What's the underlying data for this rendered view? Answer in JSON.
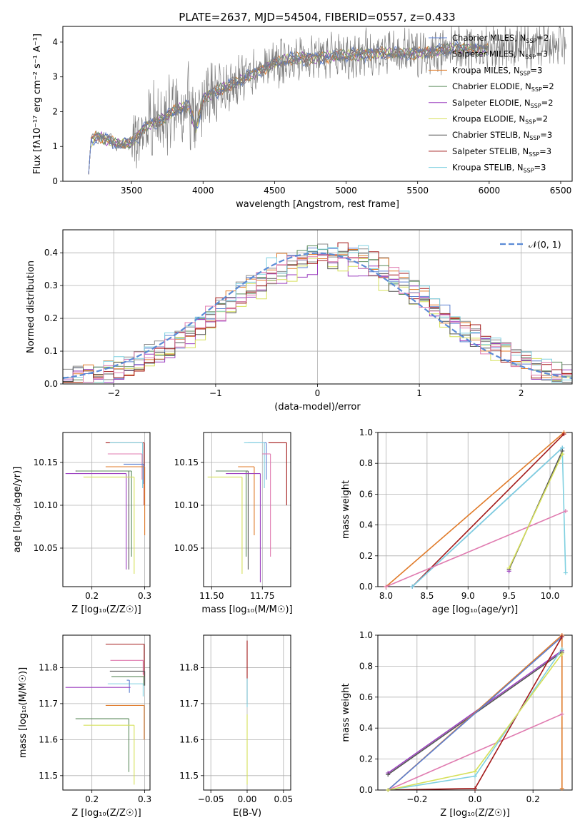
{
  "title": "PLATE=2637, MJD=54504, FIBERID=0557, z=0.433",
  "colors": {
    "chabrier_miles": "#5b7fd1",
    "salpeter_miles": "#8a8a8a",
    "kroupa_miles": "#e07b2a",
    "chabrier_elodie": "#5a8a5a",
    "salpeter_elodie": "#9b3fbf",
    "kroupa_elodie": "#d6e05a",
    "chabrier_stelib": "#555555",
    "salpeter_stelib": "#a31a1a",
    "kroupa_stelib": "#7fd0e0",
    "pink": "#e07bb0",
    "data": "#7f7f7f",
    "gauss": "#5b8bd6",
    "grid": "#b0b0b0"
  },
  "chart_data": [
    {
      "id": "spectrum",
      "type": "line",
      "xlabel": "wavelength [Angstrom, rest frame]",
      "ylabel": "Flux [fλ10⁻¹⁷ erg cm⁻² s⁻¹ A⁻¹]",
      "xlim": [
        3020,
        6580
      ],
      "ylim": [
        0,
        4.45
      ],
      "xticks": [
        3500,
        4000,
        4500,
        5000,
        5500,
        6000,
        6500
      ],
      "yticks": [
        0,
        1,
        2,
        3,
        4
      ],
      "legend_position": "top-right",
      "legend": [
        {
          "label": "Chabrier MILES, N",
          "sub": "SSP",
          "suffix": "=2",
          "color": "#5b7fd1"
        },
        {
          "label": "Salpeter MILES, N",
          "sub": "SSP",
          "suffix": "=3",
          "color": "#8a8a8a"
        },
        {
          "label": "Kroupa MILES, N",
          "sub": "SSP",
          "suffix": "=3",
          "color": "#e07b2a"
        },
        {
          "label": "Chabrier ELODIE, N",
          "sub": "SSP",
          "suffix": "=2",
          "color": "#5a8a5a"
        },
        {
          "label": "Salpeter ELODIE, N",
          "sub": "SSP",
          "suffix": "=2",
          "color": "#9b3fbf"
        },
        {
          "label": "Kroupa ELODIE, N",
          "sub": "SSP",
          "suffix": "=2",
          "color": "#d6e05a"
        },
        {
          "label": "Chabrier STELIB, N",
          "sub": "SSP",
          "suffix": "=3",
          "color": "#555555"
        },
        {
          "label": "Salpeter STELIB, N",
          "sub": "SSP",
          "suffix": "=3",
          "color": "#a31a1a"
        },
        {
          "label": "Kroupa STELIB, N",
          "sub": "SSP",
          "suffix": "=3",
          "color": "#7fd0e0"
        }
      ],
      "continuum": {
        "x": [
          3200,
          3250,
          3300,
          3400,
          3500,
          3600,
          3700,
          3800,
          3900,
          3950,
          4000,
          4100,
          4200,
          4300,
          4500,
          4700,
          5000,
          5200,
          5400,
          5600,
          5800,
          6000,
          6200,
          6400,
          6540
        ],
        "y": [
          1.1,
          1.3,
          1.25,
          1.05,
          1.1,
          1.6,
          1.75,
          2.0,
          2.2,
          1.5,
          2.4,
          2.6,
          2.75,
          3.0,
          3.4,
          3.55,
          3.6,
          3.7,
          3.65,
          3.75,
          3.8,
          3.8,
          3.85,
          3.85,
          3.9
        ]
      },
      "data_start": 3250,
      "models_start": 3200,
      "models_end": 6000,
      "grid": false
    },
    {
      "id": "residuals",
      "type": "histogram",
      "xlabel": "(data-model)/error",
      "ylabel": "Normed distribution",
      "xlim": [
        -2.5,
        2.5
      ],
      "ylim": [
        0,
        0.47
      ],
      "xticks": [
        -2,
        -1,
        0,
        1,
        2
      ],
      "yticks": [
        0,
        0.1,
        0.2,
        0.3,
        0.4
      ],
      "bin_width": 0.1,
      "gauss_label": "𝒩(0, 1)",
      "legend_position": "top-right",
      "grid": true
    },
    {
      "id": "age_vs_Z",
      "type": "errorbar",
      "xlabel": "Z [log₁₀(Z/Z☉)]",
      "ylabel": "age  [log₁₀(age/yr)]",
      "xlim": [
        0.145,
        0.31
      ],
      "ylim": [
        10.005,
        10.185
      ],
      "xticks": [
        0.2,
        0.3
      ],
      "yticks": [
        10.05,
        10.1,
        10.15
      ],
      "series": [
        {
          "color": "#a31a1a",
          "x": 0.299,
          "y": 10.173,
          "xlo": 0.226,
          "ylo": 10.1
        },
        {
          "color": "#7fd0e0",
          "x": 0.296,
          "y": 10.173,
          "xlo": 0.234,
          "ylo": 10.12
        },
        {
          "color": "#e07bb0",
          "x": 0.295,
          "y": 10.16,
          "xlo": 0.23,
          "ylo": 10.13
        },
        {
          "color": "#e07b2a",
          "x": 0.3,
          "y": 10.145,
          "xlo": 0.226,
          "ylo": 10.065
        },
        {
          "color": "#5b7fd1",
          "x": 0.298,
          "y": 10.148,
          "xlo": 0.26,
          "ylo": 10.125
        },
        {
          "color": "#555555",
          "x": 0.27,
          "y": 10.14,
          "xlo": 0.169,
          "ylo": 10.025
        },
        {
          "color": "#5a8a5a",
          "x": 0.275,
          "y": 10.14,
          "xlo": 0.172,
          "ylo": 10.04
        },
        {
          "color": "#9b3fbf",
          "x": 0.265,
          "y": 10.137,
          "xlo": 0.15,
          "ylo": 10.025
        },
        {
          "color": "#d6e05a",
          "x": 0.28,
          "y": 10.133,
          "xlo": 0.184,
          "ylo": 10.02
        }
      ],
      "grid": true
    },
    {
      "id": "age_vs_mass",
      "type": "errorbar",
      "xlabel": "mass [log₁₀(M/M☉)]",
      "ylabel": "",
      "xlim": [
        11.46,
        11.89
      ],
      "ylim": [
        10.005,
        10.185
      ],
      "xticks": [
        11.5,
        11.75
      ],
      "yticks": [
        10.05,
        10.1,
        10.15
      ],
      "series": [
        {
          "color": "#a31a1a",
          "x": 11.87,
          "y": 10.173,
          "xlo": 11.78,
          "ylo": 10.1
        },
        {
          "color": "#5b7fd1",
          "x": 11.77,
          "y": 10.173,
          "xlo": 11.68,
          "ylo": 10.13
        },
        {
          "color": "#7fd0e0",
          "x": 11.76,
          "y": 10.173,
          "xlo": 11.66,
          "ylo": 10.12
        },
        {
          "color": "#e07bb0",
          "x": 11.79,
          "y": 10.16,
          "xlo": 11.75,
          "ylo": 10.04
        },
        {
          "color": "#e07b2a",
          "x": 11.71,
          "y": 10.145,
          "xlo": 11.63,
          "ylo": 10.065
        },
        {
          "color": "#555555",
          "x": 11.68,
          "y": 10.14,
          "xlo": 11.56,
          "ylo": 10.025
        },
        {
          "color": "#5a8a5a",
          "x": 11.67,
          "y": 10.14,
          "xlo": 11.52,
          "ylo": 10.04
        },
        {
          "color": "#9b3fbf",
          "x": 11.74,
          "y": 10.137,
          "xlo": 11.57,
          "ylo": 10.01
        },
        {
          "color": "#d6e05a",
          "x": 11.65,
          "y": 10.133,
          "xlo": 11.48,
          "ylo": 10.02
        }
      ],
      "grid": true
    },
    {
      "id": "mass_weight_vs_age",
      "type": "line",
      "xlabel": "age  [log₁₀(age/yr)]",
      "ylabel": "mass weight",
      "xlim": [
        7.9,
        10.27
      ],
      "ylim": [
        0,
        1
      ],
      "xticks": [
        8.0,
        8.5,
        9.0,
        9.5,
        10.0
      ],
      "yticks": [
        0.0,
        0.2,
        0.4,
        0.6,
        0.8,
        1.0
      ],
      "series": [
        {
          "color": "#e07b2a",
          "x": [
            8.0,
            10.17
          ],
          "y": [
            0.0,
            1.0
          ]
        },
        {
          "color": "#a31a1a",
          "x": [
            8.32,
            10.17
          ],
          "y": [
            0.0,
            0.99
          ]
        },
        {
          "color": "#5b7fd1",
          "x": [
            8.32,
            10.15
          ],
          "y": [
            0.0,
            0.9
          ]
        },
        {
          "color": "#7fd0e0",
          "x": [
            8.32,
            10.15,
            10.19
          ],
          "y": [
            0.0,
            0.9,
            0.09
          ]
        },
        {
          "color": "#e07bb0",
          "x": [
            8.0,
            10.19
          ],
          "y": [
            0.0,
            0.49
          ]
        },
        {
          "color": "#555555",
          "x": [
            9.5,
            10.15
          ],
          "y": [
            0.11,
            0.88
          ]
        },
        {
          "color": "#d6e05a",
          "x": [
            9.5,
            10.15
          ],
          "y": [
            0.12,
            0.86
          ]
        },
        {
          "color": "#9b3fbf",
          "x": [
            9.5
          ],
          "y": [
            0.1
          ]
        }
      ],
      "grid": true
    },
    {
      "id": "mass_vs_Z",
      "type": "errorbar",
      "xlabel": "Z [log₁₀(Z/Z☉)]",
      "ylabel": "mass [log₁₀(M/M☉)]",
      "xlim": [
        0.145,
        0.31
      ],
      "ylim": [
        11.46,
        11.89
      ],
      "xticks": [
        0.2,
        0.3
      ],
      "yticks": [
        11.5,
        11.6,
        11.7,
        11.8
      ],
      "series": [
        {
          "color": "#a31a1a",
          "x": 0.299,
          "y": 11.865,
          "xlo": 0.226,
          "ylo": 11.775
        },
        {
          "color": "#e07bb0",
          "x": 0.297,
          "y": 11.82,
          "xlo": 0.235,
          "ylo": 11.78
        },
        {
          "color": "#555555",
          "x": 0.3,
          "y": 11.79,
          "xlo": 0.234,
          "ylo": 11.75
        },
        {
          "color": "#5a8a5a",
          "x": 0.298,
          "y": 11.775,
          "xlo": 0.237,
          "ylo": 11.75
        },
        {
          "color": "#7fd0e0",
          "x": 0.297,
          "y": 11.755,
          "xlo": 0.23,
          "ylo": 11.72
        },
        {
          "color": "#5b7fd1",
          "x": 0.271,
          "y": 11.765,
          "xlo": 0.266,
          "ylo": 11.73
        },
        {
          "color": "#9b3fbf",
          "x": 0.273,
          "y": 11.745,
          "xlo": 0.15,
          "ylo": 11.745
        },
        {
          "color": "#e07b2a",
          "x": 0.299,
          "y": 11.695,
          "xlo": 0.226,
          "ylo": 11.6
        },
        {
          "color": "#5a8a5a",
          "x": 0.27,
          "y": 11.658,
          "xlo": 0.169,
          "ylo": 11.51
        },
        {
          "color": "#d6e05a",
          "x": 0.28,
          "y": 11.64,
          "xlo": 0.184,
          "ylo": 11.475
        }
      ],
      "grid": true
    },
    {
      "id": "mass_vs_ebv",
      "type": "errorbar",
      "xlabel": "E(B-V)",
      "ylabel": "",
      "xlim": [
        -0.06,
        0.06
      ],
      "ylim": [
        11.46,
        11.89
      ],
      "xticks": [
        -0.05,
        0.0,
        0.05
      ],
      "yticks": [
        11.5,
        11.6,
        11.7,
        11.8
      ],
      "series": [
        {
          "color": "#a31a1a",
          "x": 0.0,
          "y": 11.875,
          "xlo": 0.0,
          "ylo": 11.7
        },
        {
          "color": "#7fd0e0",
          "x": 0.0,
          "y": 11.77,
          "xlo": 0.0,
          "ylo": 11.69
        },
        {
          "color": "#d6e05a",
          "x": 0.0,
          "y": 11.67,
          "xlo": 0.0,
          "ylo": 11.475
        }
      ],
      "grid": true
    },
    {
      "id": "mass_weight_vs_Z",
      "type": "line",
      "xlabel": "Z [log₁₀(Z/Z☉)]",
      "ylabel": "mass weight",
      "xlim": [
        -0.335,
        0.335
      ],
      "ylim": [
        0,
        1
      ],
      "xticks": [
        -0.2,
        0.0,
        0.2
      ],
      "yticks": [
        0.0,
        0.2,
        0.4,
        0.6,
        0.8,
        1.0
      ],
      "series": [
        {
          "color": "#9b3fbf",
          "x": [
            -0.3,
            0.3
          ],
          "y": [
            0.11,
            0.9
          ]
        },
        {
          "color": "#555555",
          "x": [
            -0.3,
            0.3
          ],
          "y": [
            0.1,
            0.89
          ]
        },
        {
          "color": "#e07b2a",
          "x": [
            -0.3,
            0.3,
            0.3
          ],
          "y": [
            0.0,
            1.0,
            0.01
          ]
        },
        {
          "color": "#5b7fd1",
          "x": [
            -0.3,
            0.3
          ],
          "y": [
            0.0,
            0.99
          ]
        },
        {
          "color": "#e07bb0",
          "x": [
            -0.3,
            0.3
          ],
          "y": [
            0.0,
            0.49
          ]
        },
        {
          "color": "#a31a1a",
          "x": [
            -0.3,
            0.0,
            0.3
          ],
          "y": [
            0.0,
            0.01,
            0.99
          ]
        },
        {
          "color": "#7fd0e0",
          "x": [
            -0.3,
            0.0,
            0.3
          ],
          "y": [
            0.0,
            0.09,
            0.91
          ]
        },
        {
          "color": "#d6e05a",
          "x": [
            -0.3,
            0.0,
            0.3
          ],
          "y": [
            0.0,
            0.12,
            0.88
          ]
        }
      ],
      "grid": true
    }
  ]
}
